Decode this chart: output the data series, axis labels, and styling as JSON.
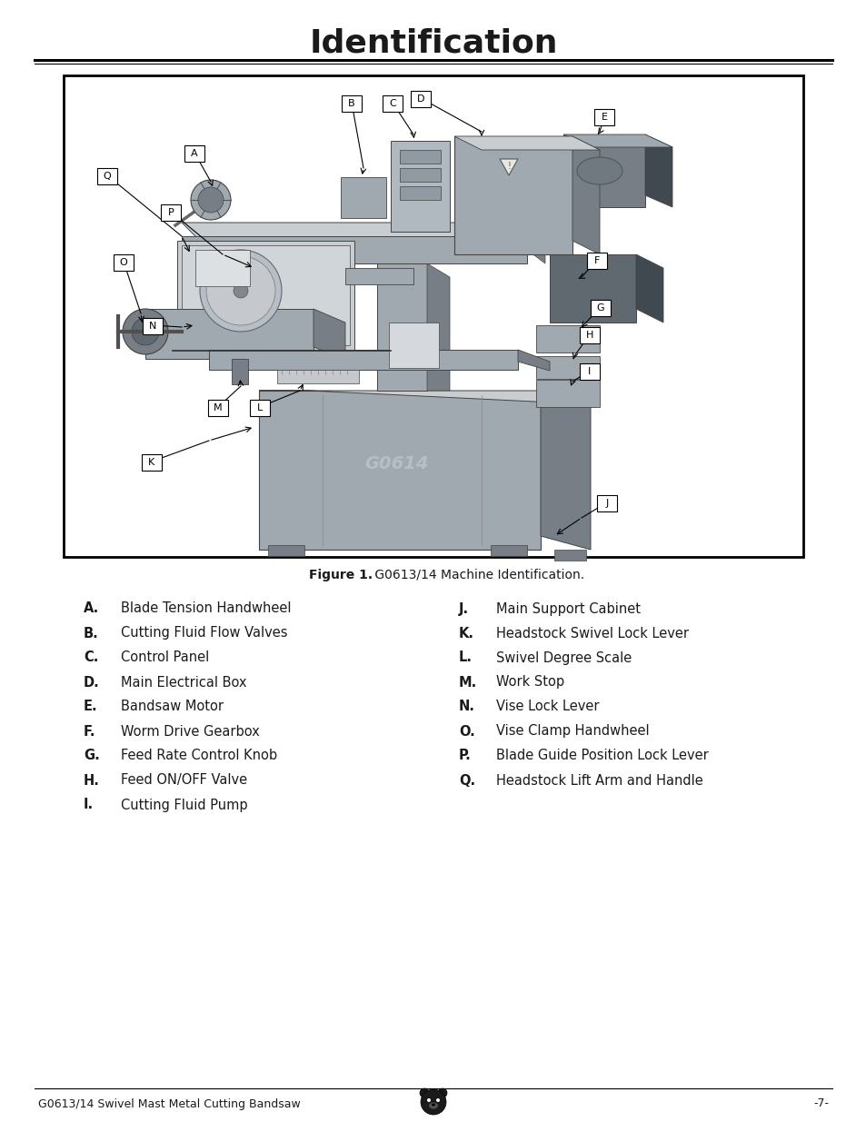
{
  "title": "Identification",
  "title_fontsize": 26,
  "title_fontweight": "bold",
  "bg_color": "#ffffff",
  "figure_caption_bold": "Figure 1.",
  "figure_caption_rest": " G0613/14 Machine Identification.",
  "footer_left": "G0613/14 Swivel Mast Metal Cutting Bandsaw",
  "footer_right": "-7-",
  "left_items": [
    [
      "A.",
      "Blade Tension Handwheel"
    ],
    [
      "B.",
      "Cutting Fluid Flow Valves"
    ],
    [
      "C.",
      "Control Panel"
    ],
    [
      "D.",
      "Main Electrical Box"
    ],
    [
      "E.",
      "Bandsaw Motor"
    ],
    [
      "F.",
      "Worm Drive Gearbox"
    ],
    [
      "G.",
      "Feed Rate Control Knob"
    ],
    [
      "H.",
      "Feed ON/OFF Valve"
    ],
    [
      "I.",
      "Cutting Fluid Pump"
    ]
  ],
  "right_items": [
    [
      "J.",
      "Main Support Cabinet"
    ],
    [
      "K.",
      "Headstock Swivel Lock Lever"
    ],
    [
      "L.",
      "Swivel Degree Scale"
    ],
    [
      "M.",
      "Work Stop"
    ],
    [
      "N.",
      "Vise Lock Lever"
    ],
    [
      "O.",
      "Vise Clamp Handwheel"
    ],
    [
      "P.",
      "Blade Guide Position Lock Lever"
    ],
    [
      "Q.",
      "Headstock Lift Arm and Handle"
    ]
  ],
  "text_color": "#1a1a1a",
  "line_color": "#000000"
}
